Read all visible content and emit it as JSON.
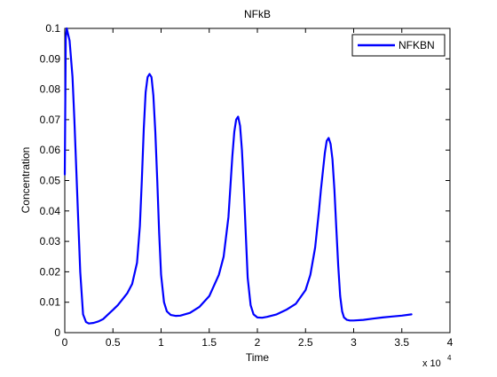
{
  "chart_data": {
    "type": "line",
    "title": "NFkB",
    "xlabel": "Time",
    "ylabel": "Concentration",
    "x_exponent_label": "x 10",
    "x_exponent_power": "4",
    "xlim": [
      0,
      4
    ],
    "ylim": [
      0,
      0.1
    ],
    "x_ticks": [
      "0",
      "0.5",
      "1",
      "1.5",
      "2",
      "2.5",
      "3",
      "3.5",
      "4"
    ],
    "y_ticks": [
      "0",
      "0.01",
      "0.02",
      "0.03",
      "0.04",
      "0.05",
      "0.06",
      "0.07",
      "0.08",
      "0.09",
      "0.1"
    ],
    "grid": false,
    "legend_position": "top-right",
    "series": [
      {
        "name": "NFKBN",
        "color": "#0000ff",
        "x": [
          0,
          0.01,
          0.02,
          0.05,
          0.08,
          0.1,
          0.13,
          0.16,
          0.19,
          0.22,
          0.25,
          0.3,
          0.35,
          0.4,
          0.45,
          0.5,
          0.55,
          0.6,
          0.65,
          0.7,
          0.75,
          0.78,
          0.8,
          0.82,
          0.84,
          0.86,
          0.88,
          0.9,
          0.92,
          0.94,
          0.96,
          0.98,
          1.0,
          1.03,
          1.06,
          1.1,
          1.15,
          1.2,
          1.3,
          1.4,
          1.5,
          1.6,
          1.65,
          1.7,
          1.72,
          1.74,
          1.76,
          1.78,
          1.8,
          1.82,
          1.84,
          1.86,
          1.88,
          1.9,
          1.93,
          1.96,
          2.0,
          2.05,
          2.1,
          2.2,
          2.3,
          2.4,
          2.5,
          2.55,
          2.6,
          2.64,
          2.66,
          2.68,
          2.7,
          2.72,
          2.74,
          2.76,
          2.78,
          2.8,
          2.82,
          2.84,
          2.86,
          2.88,
          2.9,
          2.93,
          2.96,
          3.0,
          3.1,
          3.2,
          3.3,
          3.4,
          3.5,
          3.6
        ],
        "y": [
          0.052,
          0.097,
          0.1,
          0.096,
          0.084,
          0.07,
          0.045,
          0.02,
          0.006,
          0.0035,
          0.003,
          0.0032,
          0.0037,
          0.0045,
          0.006,
          0.0075,
          0.009,
          0.011,
          0.013,
          0.016,
          0.023,
          0.035,
          0.05,
          0.067,
          0.079,
          0.084,
          0.085,
          0.084,
          0.078,
          0.066,
          0.05,
          0.033,
          0.019,
          0.01,
          0.007,
          0.0058,
          0.0055,
          0.0056,
          0.0065,
          0.0085,
          0.012,
          0.019,
          0.025,
          0.038,
          0.048,
          0.058,
          0.066,
          0.07,
          0.071,
          0.068,
          0.06,
          0.047,
          0.032,
          0.018,
          0.009,
          0.006,
          0.005,
          0.0049,
          0.0052,
          0.006,
          0.0075,
          0.0095,
          0.014,
          0.019,
          0.028,
          0.04,
          0.047,
          0.053,
          0.059,
          0.063,
          0.064,
          0.062,
          0.057,
          0.047,
          0.034,
          0.022,
          0.012,
          0.007,
          0.005,
          0.0042,
          0.004,
          0.004,
          0.0042,
          0.0046,
          0.005,
          0.0053,
          0.0056,
          0.006
        ]
      }
    ]
  }
}
